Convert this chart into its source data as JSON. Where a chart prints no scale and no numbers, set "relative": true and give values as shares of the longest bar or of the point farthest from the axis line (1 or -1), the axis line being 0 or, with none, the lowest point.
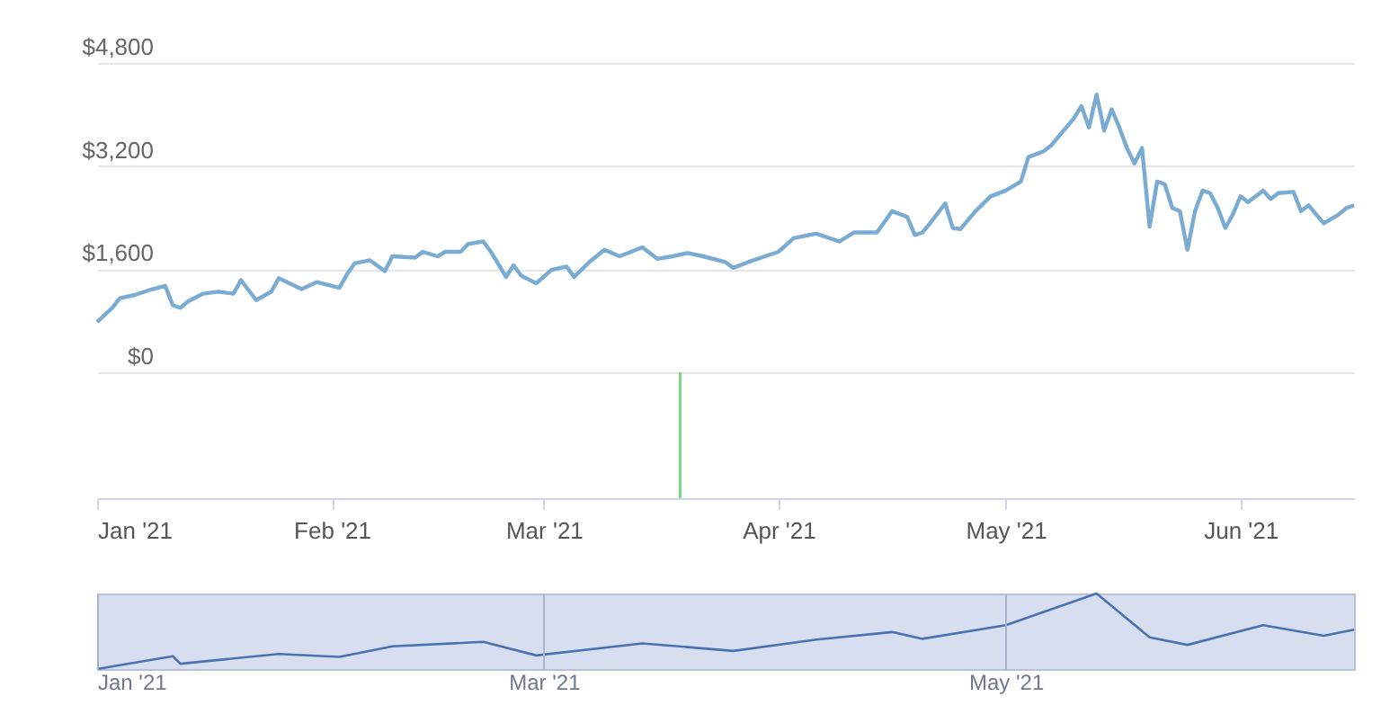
{
  "chart_data": [
    {
      "type": "line",
      "color": "#7aabd3",
      "grid": "y",
      "tick_labels": "y",
      "xlim": [
        "2021-01-01",
        "2021-06-16"
      ],
      "ylim": [
        0,
        4800
      ],
      "yticks": [
        {
          "value": 0,
          "label": "$0"
        },
        {
          "value": 1600,
          "label": "$1,600"
        },
        {
          "value": 3200,
          "label": "$3,200"
        },
        {
          "value": 4800,
          "label": "$4,800"
        }
      ],
      "x": [
        "2021-01-01",
        "2021-01-03",
        "2021-01-04",
        "2021-01-06",
        "2021-01-08",
        "2021-01-10",
        "2021-01-11",
        "2021-01-12",
        "2021-01-13",
        "2021-01-15",
        "2021-01-17",
        "2021-01-19",
        "2021-01-20",
        "2021-01-22",
        "2021-01-24",
        "2021-01-25",
        "2021-01-28",
        "2021-01-30",
        "2021-02-02",
        "2021-02-03",
        "2021-02-04",
        "2021-02-06",
        "2021-02-08",
        "2021-02-09",
        "2021-02-12",
        "2021-02-13",
        "2021-02-15",
        "2021-02-16",
        "2021-02-18",
        "2021-02-19",
        "2021-02-21",
        "2021-02-22",
        "2021-02-24",
        "2021-02-25",
        "2021-02-26",
        "2021-02-28",
        "2021-03-02",
        "2021-03-04",
        "2021-03-05",
        "2021-03-07",
        "2021-03-09",
        "2021-03-11",
        "2021-03-14",
        "2021-03-16",
        "2021-03-18",
        "2021-03-20",
        "2021-03-22",
        "2021-03-25",
        "2021-03-26",
        "2021-03-28",
        "2021-04-01",
        "2021-04-03",
        "2021-04-05",
        "2021-04-06",
        "2021-04-09",
        "2021-04-11",
        "2021-04-14",
        "2021-04-16",
        "2021-04-18",
        "2021-04-19",
        "2021-04-20",
        "2021-04-21",
        "2021-04-23",
        "2021-04-24",
        "2021-04-25",
        "2021-04-27",
        "2021-04-29",
        "2021-05-01",
        "2021-05-03",
        "2021-05-04",
        "2021-05-06",
        "2021-05-07",
        "2021-05-09",
        "2021-05-10",
        "2021-05-11",
        "2021-05-12",
        "2021-05-13",
        "2021-05-14",
        "2021-05-15",
        "2021-05-16",
        "2021-05-17",
        "2021-05-18",
        "2021-05-19",
        "2021-05-20",
        "2021-05-21",
        "2021-05-22",
        "2021-05-23",
        "2021-05-24",
        "2021-05-25",
        "2021-05-26",
        "2021-05-27",
        "2021-05-28",
        "2021-05-29",
        "2021-05-30",
        "2021-05-31",
        "2021-06-01",
        "2021-06-02",
        "2021-06-04",
        "2021-06-05",
        "2021-06-06",
        "2021-06-08",
        "2021-06-09",
        "2021-06-10",
        "2021-06-12",
        "2021-06-14",
        "2021-06-15",
        "2021-06-16"
      ],
      "values": [
        780,
        1000,
        1150,
        1200,
        1280,
        1340,
        1040,
        1000,
        1100,
        1220,
        1250,
        1220,
        1430,
        1120,
        1250,
        1460,
        1290,
        1400,
        1310,
        1520,
        1690,
        1740,
        1570,
        1800,
        1780,
        1870,
        1800,
        1870,
        1870,
        1990,
        2030,
        1870,
        1480,
        1660,
        1500,
        1380,
        1590,
        1640,
        1480,
        1710,
        1900,
        1800,
        1940,
        1760,
        1800,
        1850,
        1800,
        1710,
        1620,
        1710,
        1870,
        2080,
        2130,
        2150,
        2030,
        2170,
        2170,
        2500,
        2410,
        2130,
        2170,
        2310,
        2620,
        2240,
        2220,
        2500,
        2730,
        2820,
        2960,
        3340,
        3430,
        3520,
        3800,
        3940,
        4130,
        3800,
        4310,
        3750,
        4080,
        3800,
        3480,
        3240,
        3480,
        2260,
        2960,
        2920,
        2550,
        2500,
        1900,
        2500,
        2820,
        2780,
        2550,
        2240,
        2450,
        2730,
        2640,
        2820,
        2690,
        2780,
        2800,
        2500,
        2590,
        2310,
        2450,
        2550,
        2590
      ]
    },
    {
      "type": "bar",
      "color": "#7fd67f",
      "relative": true,
      "tick_labels": "x",
      "xlim": [
        "2021-01-01",
        "2021-06-16"
      ],
      "xticks": [
        {
          "value": "2021-01-01",
          "label": "Jan '21"
        },
        {
          "value": "2021-02-01",
          "label": "Feb '21"
        },
        {
          "value": "2021-03-01",
          "label": "Mar '21"
        },
        {
          "value": "2021-04-01",
          "label": "Apr '21"
        },
        {
          "value": "2021-05-01",
          "label": "May '21"
        },
        {
          "value": "2021-06-01",
          "label": "Jun '21"
        }
      ],
      "x": [
        "2021-03-19"
      ],
      "values": [
        1
      ]
    },
    {
      "type": "line",
      "color": "#4b72b0",
      "relative": true,
      "grid": "x",
      "tick_labels": "x",
      "xlim": [
        "2021-01-01",
        "2021-06-16"
      ],
      "xticks": [
        {
          "value": "2021-01-01",
          "label": "Jan '21"
        },
        {
          "value": "2021-03-01",
          "label": "Mar '21"
        },
        {
          "value": "2021-05-01",
          "label": "May '21"
        }
      ],
      "x": [
        "2021-01-01",
        "2021-01-11",
        "2021-01-12",
        "2021-01-25",
        "2021-02-02",
        "2021-02-09",
        "2021-02-21",
        "2021-02-28",
        "2021-03-14",
        "2021-03-26",
        "2021-04-06",
        "2021-04-16",
        "2021-04-20",
        "2021-05-01",
        "2021-05-13",
        "2021-05-20",
        "2021-05-25",
        "2021-06-04",
        "2021-06-12",
        "2021-06-16"
      ],
      "values": [
        0,
        0.17,
        0.07,
        0.2,
        0.16,
        0.3,
        0.36,
        0.18,
        0.34,
        0.24,
        0.39,
        0.49,
        0.4,
        0.58,
        1,
        0.42,
        0.32,
        0.58,
        0.44,
        0.52
      ]
    }
  ]
}
